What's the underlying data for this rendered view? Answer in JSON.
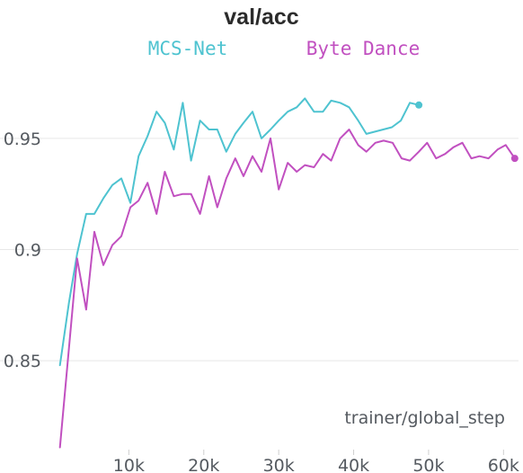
{
  "chart_data": {
    "type": "line",
    "title": "val/acc",
    "xlabel": "trainer/global_step",
    "ylabel": "",
    "xlim": [
      0,
      62000
    ],
    "ylim": [
      0.81,
      0.99
    ],
    "x_ticks": [
      10000,
      20000,
      30000,
      40000,
      50000,
      60000
    ],
    "x_tick_labels": [
      "10k",
      "20k",
      "30k",
      "40k",
      "50k",
      "60k"
    ],
    "y_ticks": [
      0.85,
      0.9,
      0.95
    ],
    "y_tick_labels": [
      "0.85",
      "0.9",
      "0.95"
    ],
    "grid": true,
    "legend_position": "top",
    "series": [
      {
        "name": "MCS-Net",
        "color": "#4ec3d0",
        "x": [
          800,
          2000,
          3100,
          4300,
          5400,
          6600,
          7800,
          9000,
          10200,
          11300,
          12500,
          13700,
          14800,
          16000,
          17200,
          18300,
          19500,
          20700,
          21800,
          23000,
          24200,
          25300,
          26500,
          27700,
          28900,
          30000,
          31200,
          32400,
          33500,
          34700,
          35900,
          37000,
          38200,
          39400,
          40600,
          41700,
          45100,
          46300,
          47500,
          48700
        ],
        "values": [
          0.848,
          0.876,
          0.898,
          0.916,
          0.916,
          0.923,
          0.929,
          0.932,
          0.921,
          0.942,
          0.951,
          0.962,
          0.957,
          0.945,
          0.966,
          0.94,
          0.958,
          0.954,
          0.954,
          0.944,
          0.952,
          0.957,
          0.962,
          0.95,
          0.954,
          0.958,
          0.962,
          0.964,
          0.968,
          0.962,
          0.962,
          0.967,
          0.966,
          0.964,
          0.958,
          0.952,
          0.955,
          0.958,
          0.966,
          0.965
        ]
      },
      {
        "name": "Byte Dance",
        "color": "#c150c0",
        "x": [
          800,
          3100,
          4300,
          5400,
          6600,
          7800,
          9000,
          10200,
          11300,
          12500,
          13700,
          14800,
          16000,
          17200,
          18300,
          19500,
          20700,
          21800,
          23000,
          24200,
          25300,
          26500,
          27700,
          28900,
          30000,
          31200,
          32400,
          33500,
          34700,
          35900,
          37000,
          38200,
          39400,
          40600,
          41700,
          42900,
          44000,
          45200,
          46400,
          47500,
          48700,
          49800,
          51000,
          52200,
          53300,
          54500,
          55700,
          56800,
          58000,
          59200,
          60300,
          61500
        ],
        "values": [
          0.811,
          0.896,
          0.873,
          0.908,
          0.893,
          0.902,
          0.906,
          0.919,
          0.922,
          0.93,
          0.916,
          0.935,
          0.924,
          0.925,
          0.925,
          0.916,
          0.933,
          0.919,
          0.932,
          0.941,
          0.933,
          0.942,
          0.935,
          0.95,
          0.927,
          0.939,
          0.935,
          0.938,
          0.937,
          0.943,
          0.94,
          0.95,
          0.954,
          0.947,
          0.944,
          0.948,
          0.949,
          0.948,
          0.941,
          0.94,
          0.944,
          0.948,
          0.941,
          0.943,
          0.946,
          0.948,
          0.941,
          0.942,
          0.941,
          0.945,
          0.947,
          0.941
        ]
      }
    ]
  }
}
